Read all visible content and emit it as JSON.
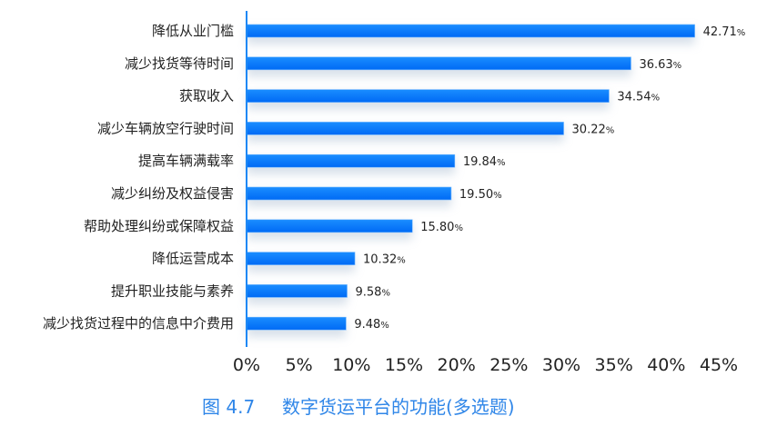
{
  "chart_data": {
    "type": "bar",
    "orientation": "horizontal",
    "title": "",
    "caption_number": "图 4.7",
    "caption_text": "数字货运平台的功能(多选题)",
    "categories": [
      "降低从业门槛",
      "减少找货等待时间",
      "获取收入",
      "减少车辆放空行驶时间",
      "提高车辆满载率",
      "减少纠纷及权益侵害",
      "帮助处理纠纷或保障权益",
      "降低运营成本",
      "提升职业技能与素养",
      "减少找货过程中的信息中介费用"
    ],
    "values": [
      42.71,
      36.63,
      34.54,
      30.22,
      19.84,
      19.5,
      15.8,
      10.32,
      9.58,
      9.48
    ],
    "value_labels": [
      "42.71",
      "36.63",
      "34.54",
      "30.22",
      "19.84",
      "19.50",
      "15.80",
      "10.32",
      "9.58",
      "9.48"
    ],
    "value_unit": "%",
    "xlim": [
      0,
      45
    ],
    "xticks": [
      "0%",
      "5%",
      "10%",
      "15%",
      "20%",
      "25%",
      "30%",
      "35%",
      "40%",
      "45%"
    ],
    "grid": false,
    "bar_color": "#0a7cff",
    "axis_color": "#1e88f5",
    "caption_color": "#2f86e8"
  }
}
